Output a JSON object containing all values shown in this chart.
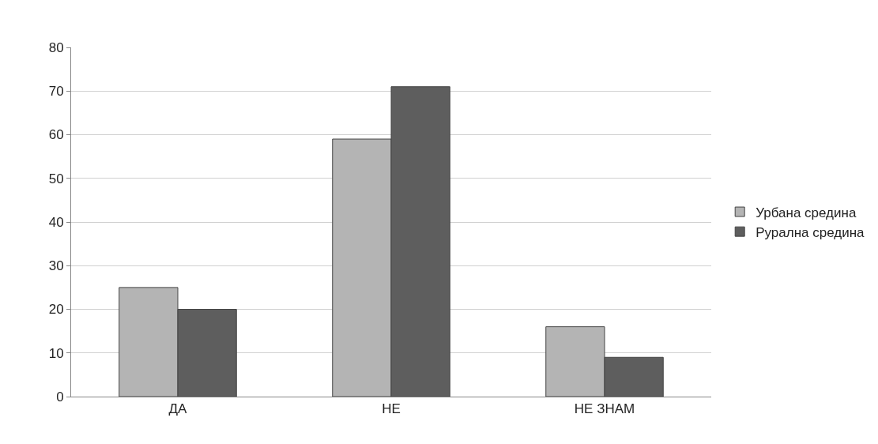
{
  "chart_data": {
    "type": "bar",
    "categories": [
      "ДА",
      "НЕ",
      "НЕ ЗНАМ"
    ],
    "series": [
      {
        "name": "Урбана средина",
        "color": "#b4b4b4",
        "values": [
          25,
          59,
          16
        ]
      },
      {
        "name": "Рурална средина",
        "color": "#5e5e5e",
        "values": [
          20,
          71,
          9
        ]
      }
    ],
    "ylim": [
      0,
      80
    ],
    "yticks": [
      0,
      10,
      20,
      30,
      40,
      50,
      60,
      70,
      80
    ],
    "grid": "y",
    "legend": "right"
  }
}
